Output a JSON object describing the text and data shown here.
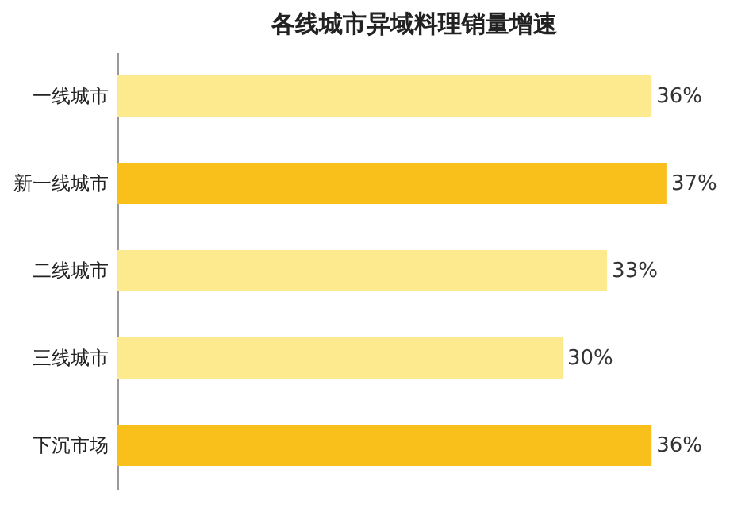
{
  "chart_data": {
    "type": "bar",
    "orientation": "horizontal",
    "title": "各线城市异域料理销量增速",
    "categories": [
      "一线城市",
      "新一线城市",
      "二线城市",
      "三线城市",
      "下沉市场"
    ],
    "values": [
      36,
      37,
      33,
      30,
      36
    ],
    "colors": [
      "#fde98e",
      "#f9c01c",
      "#fde98e",
      "#fde98e",
      "#f9c01c"
    ],
    "value_labels": [
      "36%",
      "37%",
      "33%",
      "30%",
      "36%"
    ],
    "tick_labels": "y"
  }
}
